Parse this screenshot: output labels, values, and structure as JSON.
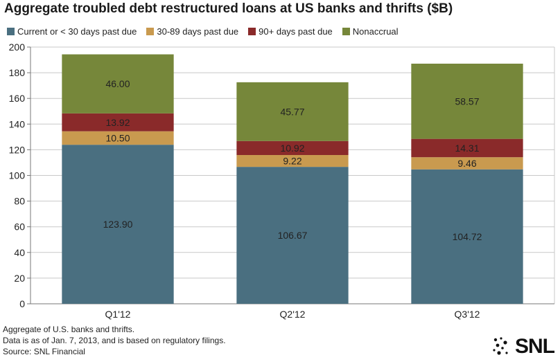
{
  "chart_data": {
    "type": "bar",
    "stacked": true,
    "title": "Aggregate troubled debt restructured loans at US banks and thrifts ($B)",
    "categories": [
      "Q1'12",
      "Q2'12",
      "Q3'12"
    ],
    "series": [
      {
        "name": "Current or < 30 days past due",
        "color": "#4a6f80",
        "values": [
          123.9,
          106.67,
          104.72
        ],
        "labels": [
          "123.90",
          "106.67",
          "104.72"
        ]
      },
      {
        "name": "30-89 days past due",
        "color": "#c99a4f",
        "values": [
          10.5,
          9.22,
          9.46
        ],
        "labels": [
          "10.50",
          "9.22",
          "9.46"
        ]
      },
      {
        "name": "90+ days past due",
        "color": "#8a2a2a",
        "values": [
          13.92,
          10.92,
          14.31
        ],
        "labels": [
          "13.92",
          "10.92",
          "14.31"
        ]
      },
      {
        "name": "Nonaccrual",
        "color": "#76873a",
        "values": [
          46.0,
          45.77,
          58.57
        ],
        "labels": [
          "46.00",
          "45.77",
          "58.57"
        ]
      }
    ],
    "ylim": [
      0,
      200
    ],
    "yticks": [
      "0",
      "20",
      "40",
      "60",
      "80",
      "100",
      "120",
      "140",
      "160",
      "180",
      "200"
    ],
    "grid": true,
    "legend_position": "top"
  },
  "footnotes": [
    "Aggregate of U.S. banks and thrifts.",
    "Data is as of Jan. 7, 2013, and is based on regulatory filings.",
    "Source: SNL Financial"
  ],
  "logo": {
    "text": "SNL"
  }
}
